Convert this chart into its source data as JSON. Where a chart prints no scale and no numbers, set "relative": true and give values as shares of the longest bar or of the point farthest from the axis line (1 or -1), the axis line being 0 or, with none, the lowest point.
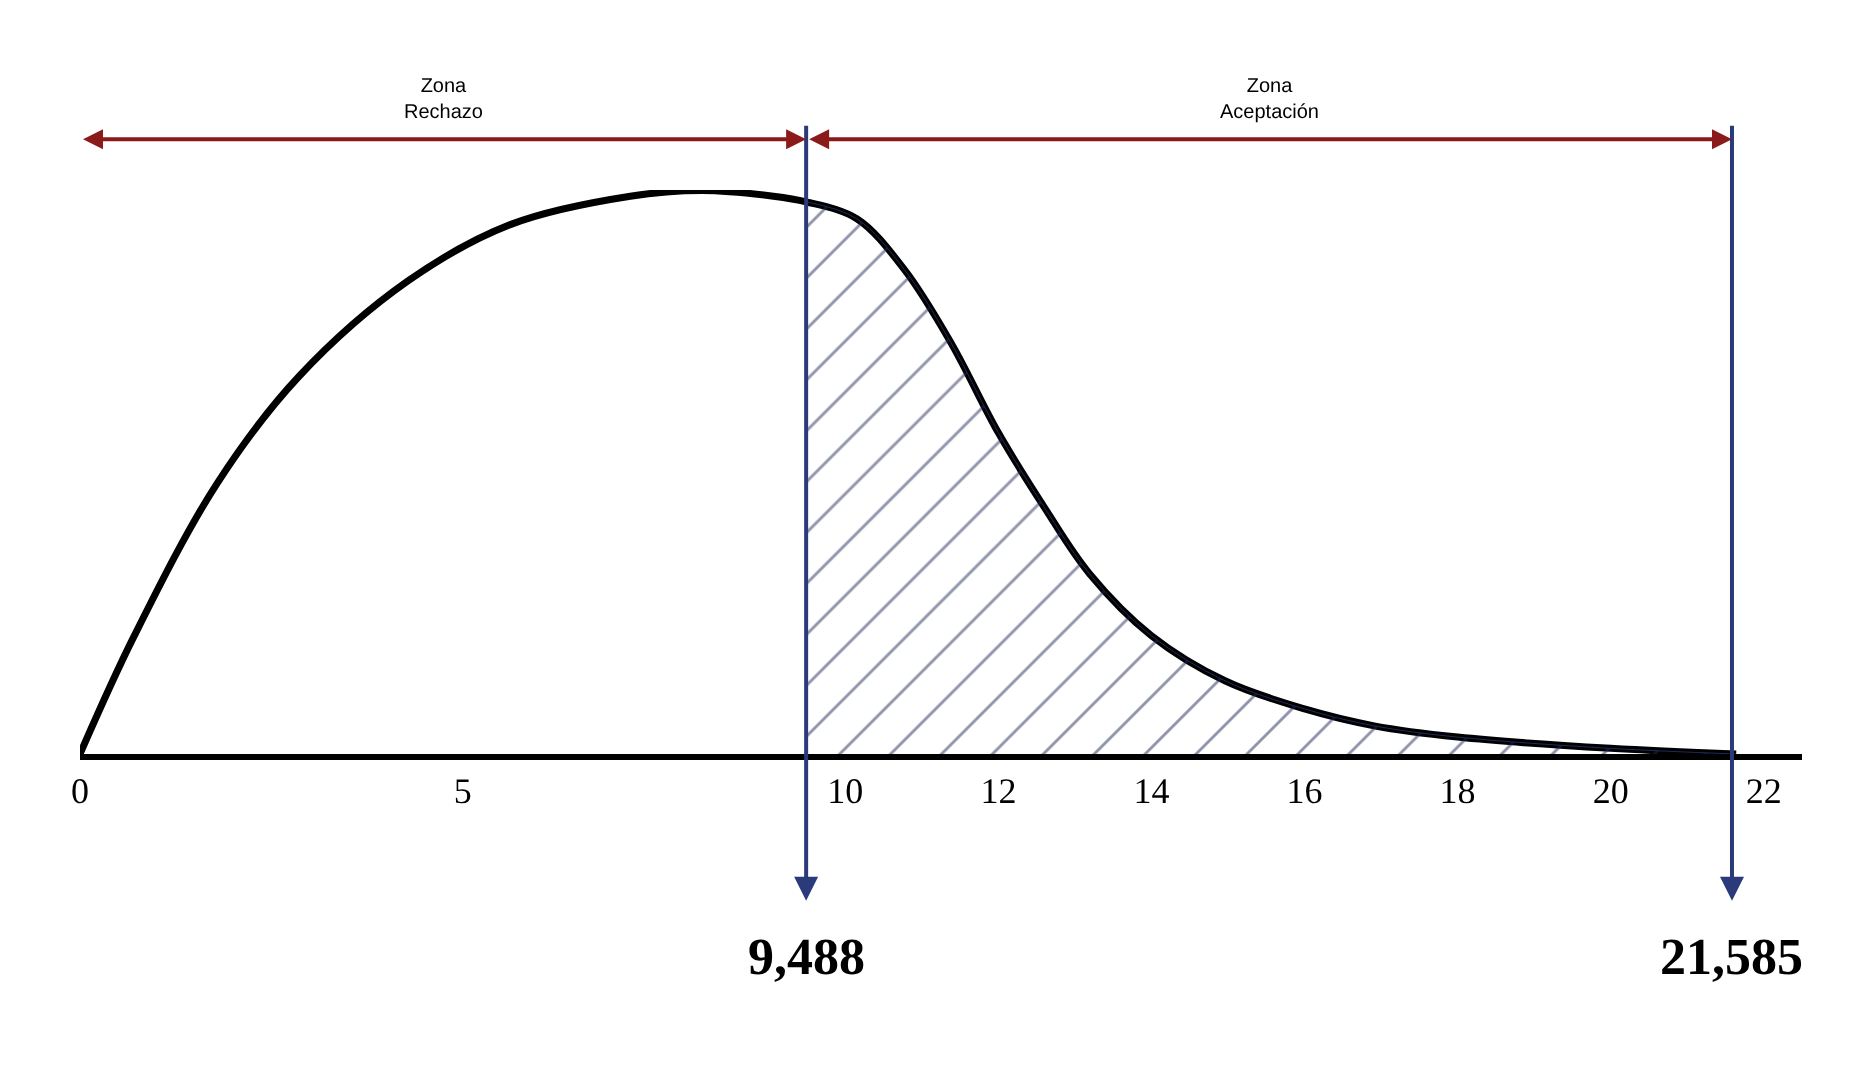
{
  "chart_data": {
    "type": "line",
    "relative": true,
    "x": [
      0,
      0.71,
      1.79,
      2.86,
      4.29,
      5.63,
      7.19,
      8.13,
      9.06,
      9.488,
      10.15,
      10.77,
      11.38,
      12,
      12.59,
      13.19,
      14,
      14.96,
      16,
      16.91,
      18,
      20,
      21.64
    ],
    "series": [
      {
        "color": "#000000",
        "values": [
          0,
          0.21,
          0.48,
          0.67,
          0.84,
          0.94,
          0.99,
          1,
          0.99,
          0.98,
          0.95,
          0.86,
          0.73,
          0.57,
          0.44,
          0.32,
          0.21,
          0.13,
          0.08,
          0.05,
          0.03,
          0.01,
          0
        ]
      },
      {
        "type": "area",
        "color": "#1f2a5a",
        "values": [
          null,
          null,
          null,
          null,
          null,
          null,
          null,
          null,
          null,
          0.98,
          0.95,
          0.86,
          0.73,
          0.57,
          0.44,
          0.32,
          0.21,
          0.13,
          0.08,
          0.05,
          0.03,
          0.01,
          0
        ]
      }
    ],
    "xlim": [
      0,
      22.5
    ],
    "xticks": [
      0,
      5,
      10,
      12,
      14,
      16,
      18,
      20,
      22
    ],
    "ref_lines": [
      {
        "axis": "x",
        "value": 9.488,
        "label": "9,488",
        "color": "#2b3a7a"
      },
      {
        "axis": "x",
        "value": 21.585,
        "label": "21,585",
        "color": "#2b3a7a"
      }
    ],
    "annotations": [
      "Zona\nRechazo",
      "Zona\nAceptación"
    ],
    "marker": "none",
    "line_style": "solid"
  }
}
